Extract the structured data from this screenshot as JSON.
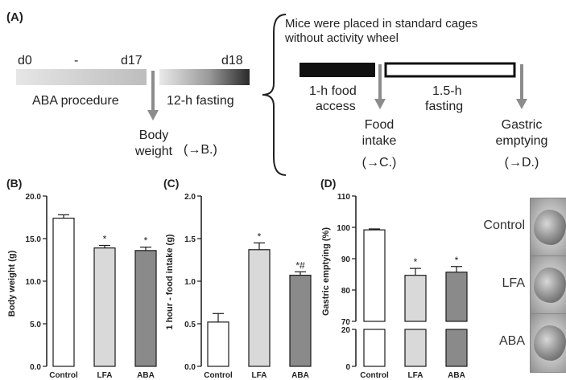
{
  "schematic": {
    "panel_label": "(A)",
    "d0": "d0",
    "dash": "-",
    "d17": "d17",
    "d18": "d18",
    "aba_procedure": "ABA procedure",
    "fasting_12h": "12-h fasting",
    "body_weight_line1": "Body",
    "body_weight_line2": "weight",
    "ref_b": "(→B.)",
    "cages_line1": "Mice were placed in standard cages",
    "cages_line2": "without activity wheel",
    "food_access_line1": "1-h food",
    "food_access_line2": "access",
    "fasting15_line1": "1.5-h",
    "fasting15_line2": "fasting",
    "food_intake_line1": "Food",
    "food_intake_line2": "intake",
    "ref_c": "(→C.)",
    "gastric_line1": "Gastric",
    "gastric_line2": "emptying",
    "ref_d": "(→D.)"
  },
  "colors": {
    "control": "#ffffff",
    "lfa": "#d9d9d9",
    "aba": "#8a8a8a",
    "arrow": "#8c8c8c",
    "outline": "#1a1a1a"
  },
  "chart_data": [
    {
      "panel": "(B)",
      "type": "bar",
      "categories": [
        "Control",
        "LFA",
        "ABA"
      ],
      "values": [
        17.4,
        13.9,
        13.6
      ],
      "errors": [
        0.4,
        0.3,
        0.4
      ],
      "annotations": [
        "",
        "*",
        "*"
      ],
      "ylabel": "Body weight (g)",
      "ylim": [
        0,
        20
      ],
      "yticks": [
        0,
        5,
        10,
        15,
        20
      ],
      "ytick_labels": [
        "0.0",
        "5.0",
        "10.0",
        "15.0",
        "20.0"
      ]
    },
    {
      "panel": "(C)",
      "type": "bar",
      "categories": [
        "Control",
        "LFA",
        "ABA"
      ],
      "values": [
        0.52,
        1.37,
        1.07
      ],
      "errors": [
        0.1,
        0.08,
        0.04
      ],
      "annotations": [
        "",
        "*",
        "*#"
      ],
      "ylabel": "1 hour - food intake (g)",
      "ylim": [
        0,
        2
      ],
      "yticks": [
        0,
        0.5,
        1,
        1.5,
        2
      ],
      "ytick_labels": [
        "0.0",
        "0.5",
        "1.0",
        "1.5",
        "2.0"
      ]
    },
    {
      "panel": "(D)",
      "type": "bar",
      "categories": [
        "Control",
        "LFA",
        "ABA"
      ],
      "values": [
        99.2,
        84.7,
        85.7
      ],
      "errors": [
        0.3,
        2.2,
        1.8
      ],
      "annotations": [
        "",
        "*",
        "*"
      ],
      "ylabel": "Gastric emptying (%)",
      "axis_break": [
        20,
        70
      ],
      "ylim_lower": [
        0,
        20
      ],
      "ylim_upper": [
        70,
        110
      ],
      "yticks": [
        0,
        20,
        70,
        80,
        90,
        100,
        110
      ],
      "ytick_labels": [
        "0",
        "20",
        "70",
        "80",
        "90",
        "100",
        "110"
      ]
    }
  ],
  "photos": [
    {
      "label": "Control"
    },
    {
      "label": "LFA"
    },
    {
      "label": "ABA"
    }
  ]
}
